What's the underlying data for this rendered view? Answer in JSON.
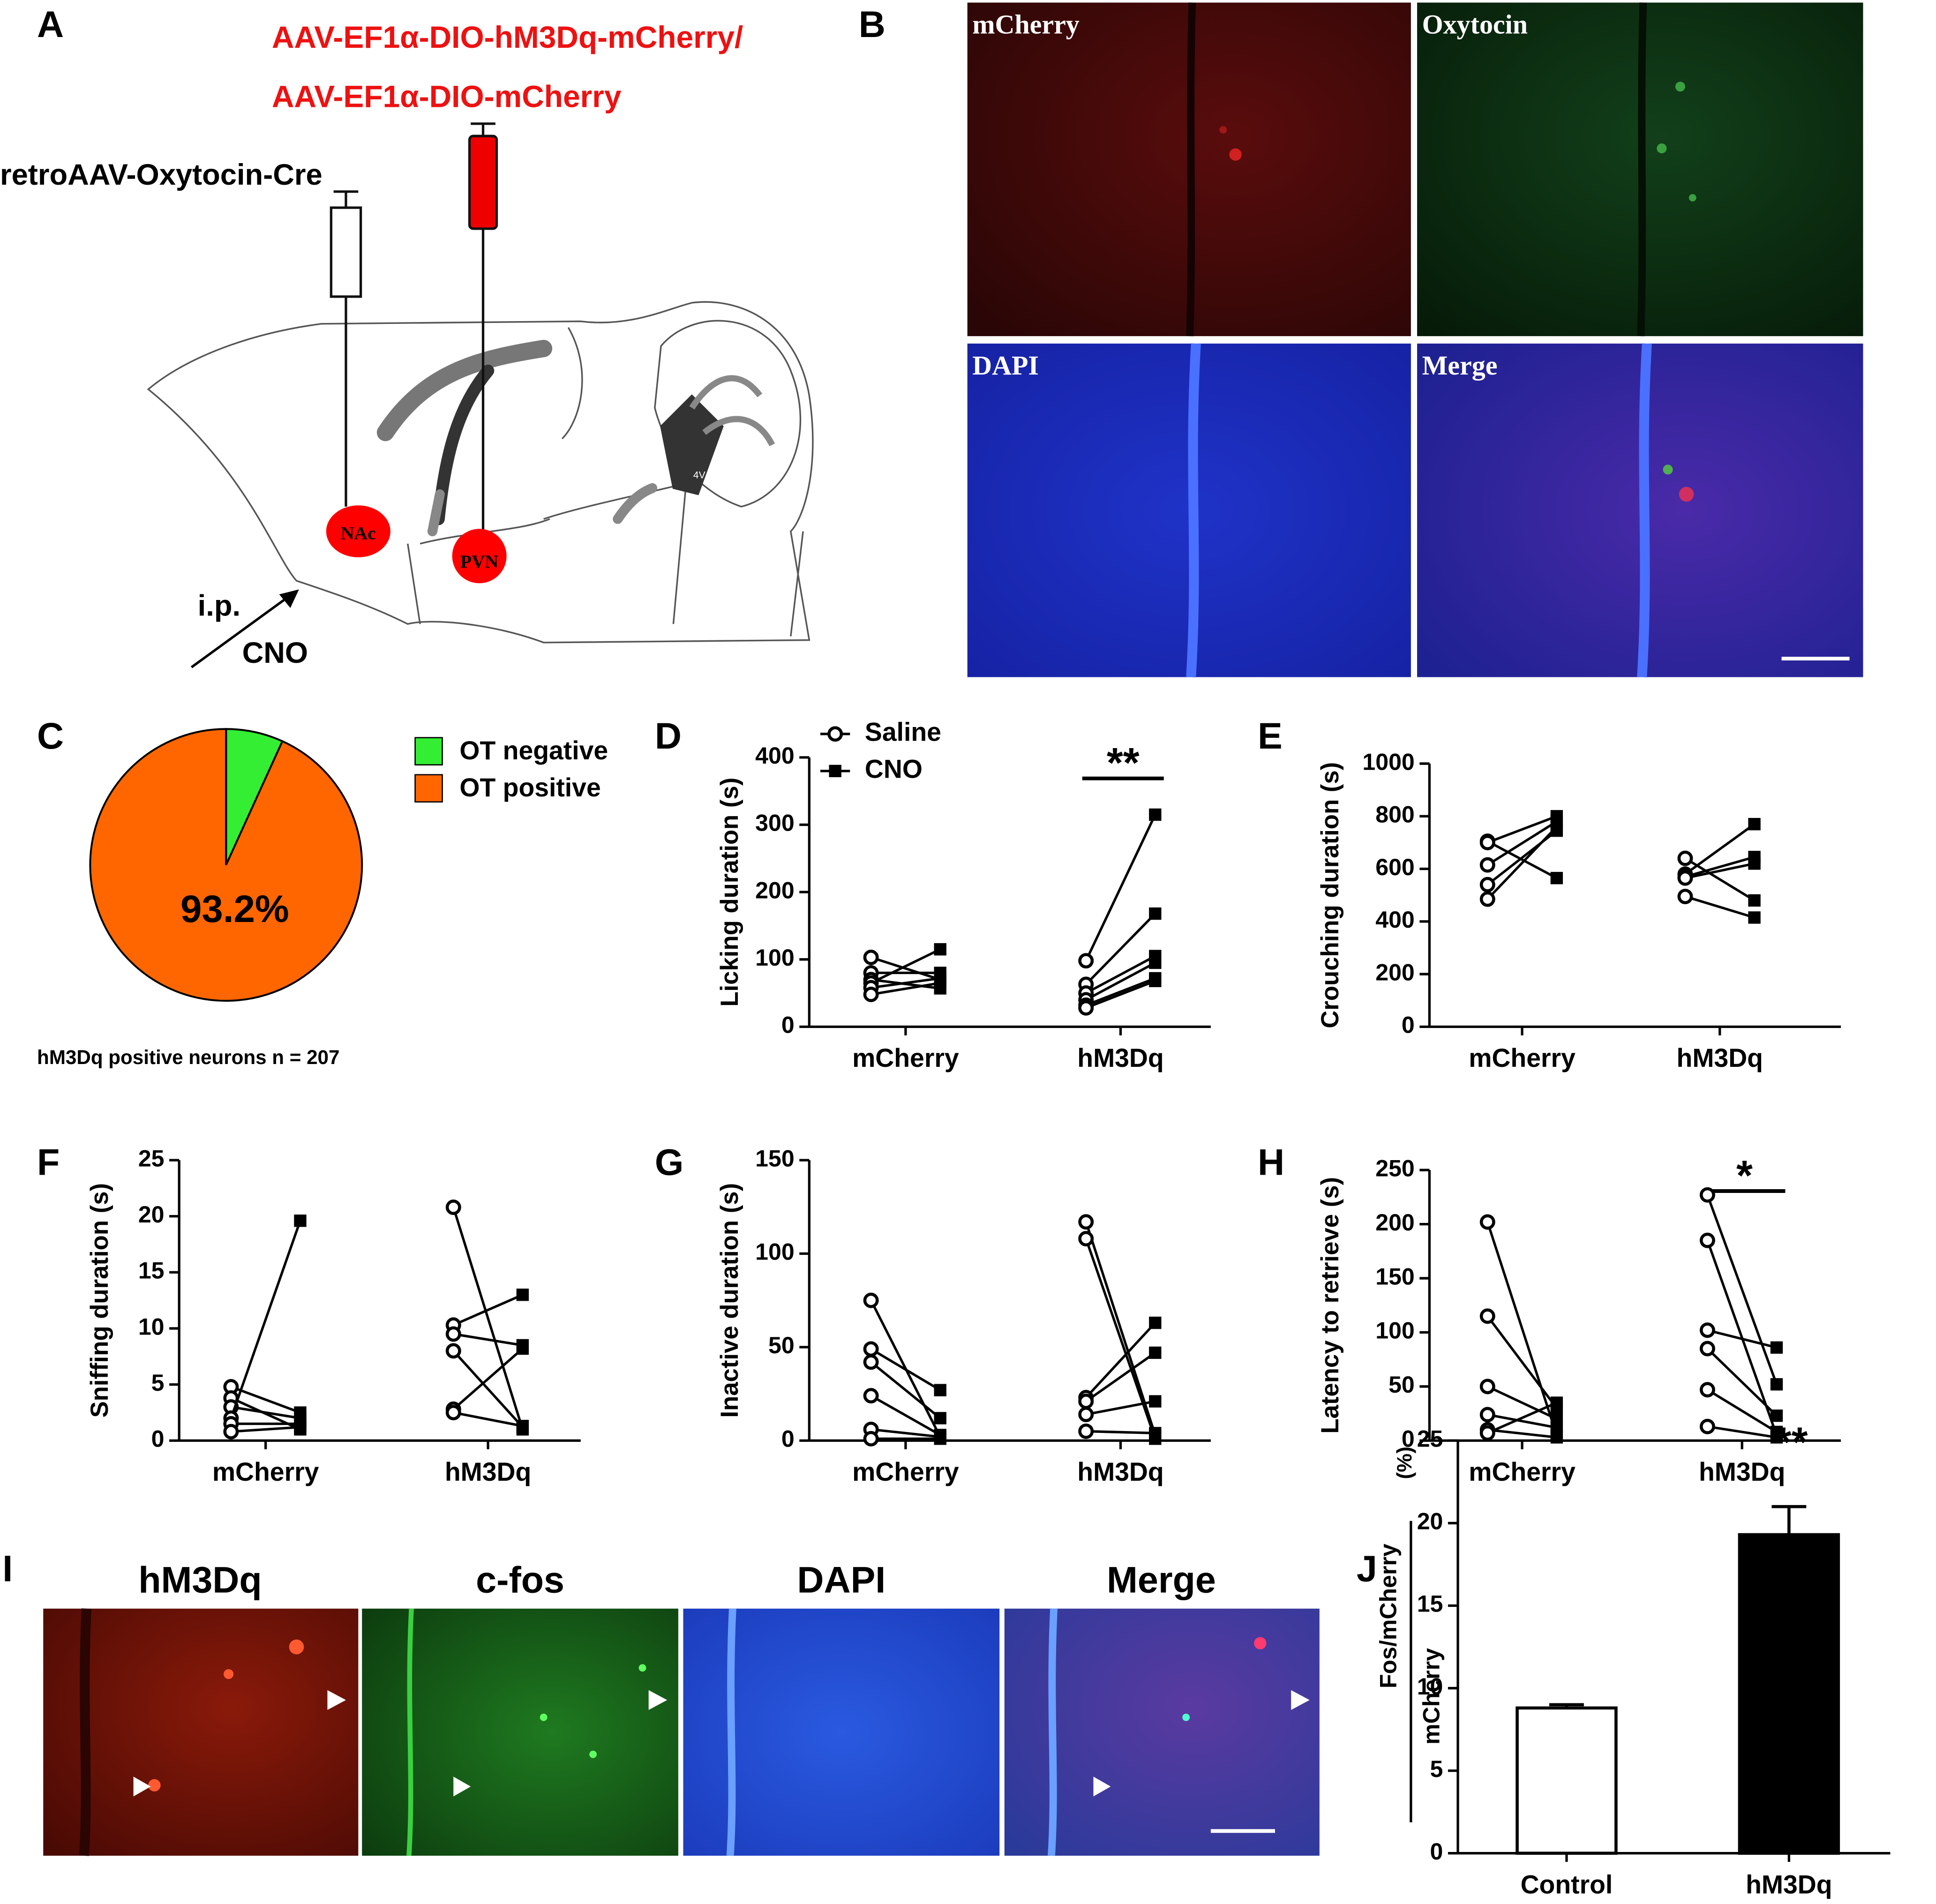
{
  "panel_letters": [
    "A",
    "B",
    "C",
    "D",
    "E",
    "F",
    "G",
    "H",
    "I",
    "J"
  ],
  "diagram": {
    "virus_1": "AAV-EF1α-DIO-hM3Dq-mCherry/",
    "virus_2": "AAV-EF1α-DIO-mCherry",
    "retro": "retroAAV-Oxytocin-Cre",
    "regions": [
      "NAc",
      "PVN",
      "4V"
    ],
    "injection": "i.p.",
    "drug": "CNO"
  },
  "micrographs_B": [
    "mCherry",
    "Oxytocin",
    "DAPI",
    "Merge"
  ],
  "micrographs_I": [
    "hM3Dq",
    "c-fos",
    "DAPI",
    "Merge"
  ],
  "chart_data": [
    {
      "type": "pie",
      "categories": [
        "OT negative",
        "OT positive"
      ],
      "values": [
        6.8,
        93.2
      ],
      "value_labels": [
        null,
        "93.2%"
      ],
      "colors": [
        "#33ee33",
        "#ff6600"
      ],
      "caption": "hM3Dq positive neurons n = 207"
    },
    {
      "type": "paired",
      "ylabel": "Licking duration (s)",
      "categories": [
        "mCherry",
        "hM3Dq"
      ],
      "ylim": [
        0,
        400
      ],
      "yticks": [
        0,
        100,
        200,
        300,
        400
      ],
      "legend": [
        "Saline",
        "CNO"
      ],
      "saline": [
        [
          103,
          80,
          70,
          65,
          58,
          48
        ],
        [
          98,
          63,
          50,
          40,
          32,
          28
        ]
      ],
      "cno": [
        [
          70,
          80,
          57,
          115,
          72,
          65
        ],
        [
          315,
          168,
          105,
          95,
          72,
          68
        ]
      ],
      "significance": {
        "category": 1,
        "label": "**"
      }
    },
    {
      "type": "paired",
      "ylabel": "Crouching duration (s)",
      "categories": [
        "mCherry",
        "hM3Dq"
      ],
      "ylim": [
        0,
        1000
      ],
      "yticks": [
        0,
        200,
        400,
        600,
        800,
        1000
      ],
      "saline": [
        [
          705,
          700,
          615,
          540,
          485
        ],
        [
          640,
          580,
          570,
          565,
          495
        ]
      ],
      "cno": [
        [
          565,
          800,
          780,
          745,
          760
        ],
        [
          480,
          770,
          645,
          620,
          415
        ]
      ]
    },
    {
      "type": "paired",
      "ylabel": "Sniffing duration (s)",
      "categories": [
        "mCherry",
        "hM3Dq"
      ],
      "ylim": [
        0,
        25
      ],
      "yticks": [
        0,
        5,
        10,
        15,
        20,
        25
      ],
      "saline": [
        [
          4.8,
          3.8,
          3,
          2,
          1.5,
          0.8
        ],
        [
          20.8,
          10.3,
          9.5,
          8,
          2.8,
          2.5
        ]
      ],
      "cno": [
        [
          2.5,
          1,
          2,
          19.6,
          1.5,
          1.2
        ],
        [
          1,
          13,
          8.5,
          1.2,
          8.2,
          1.3
        ]
      ]
    },
    {
      "type": "paired",
      "ylabel": "Inactive duration (s)",
      "categories": [
        "mCherry",
        "hM3Dq"
      ],
      "ylim": [
        0,
        150
      ],
      "yticks": [
        0,
        50,
        100,
        150
      ],
      "saline": [
        [
          75,
          49,
          42,
          24,
          6,
          1
        ],
        [
          117,
          108,
          23,
          21,
          14,
          5
        ]
      ],
      "cno": [
        [
          2,
          27,
          12,
          3,
          2,
          1
        ],
        [
          3,
          1,
          63,
          47,
          21,
          4
        ]
      ]
    },
    {
      "type": "paired",
      "ylabel": "Latency to retrieve (s)",
      "categories": [
        "mCherry",
        "hM3Dq"
      ],
      "ylim": [
        0,
        250
      ],
      "yticks": [
        0,
        50,
        100,
        150,
        200,
        250
      ],
      "saline": [
        [
          202,
          115,
          50,
          24,
          10,
          7
        ],
        [
          227,
          185,
          102,
          85,
          47,
          13
        ]
      ],
      "cno": [
        [
          5,
          30,
          20,
          12,
          3,
          35
        ],
        [
          52,
          5,
          86,
          23,
          8,
          3
        ]
      ],
      "significance": {
        "category": 1,
        "label": "*"
      }
    },
    {
      "type": "bar",
      "ylabel": [
        "Fos/mCherry",
        "mCherry",
        "(%)"
      ],
      "categories": [
        "Control",
        "hM3Dq"
      ],
      "values": [
        8.8,
        19.3
      ],
      "errors": [
        0.2,
        1.7
      ],
      "colors": [
        "#ffffff",
        "#000000"
      ],
      "ylim": [
        0,
        25
      ],
      "yticks": [
        0,
        5,
        10,
        15,
        20,
        25
      ],
      "significance": {
        "category": 1,
        "label": "**"
      }
    }
  ]
}
